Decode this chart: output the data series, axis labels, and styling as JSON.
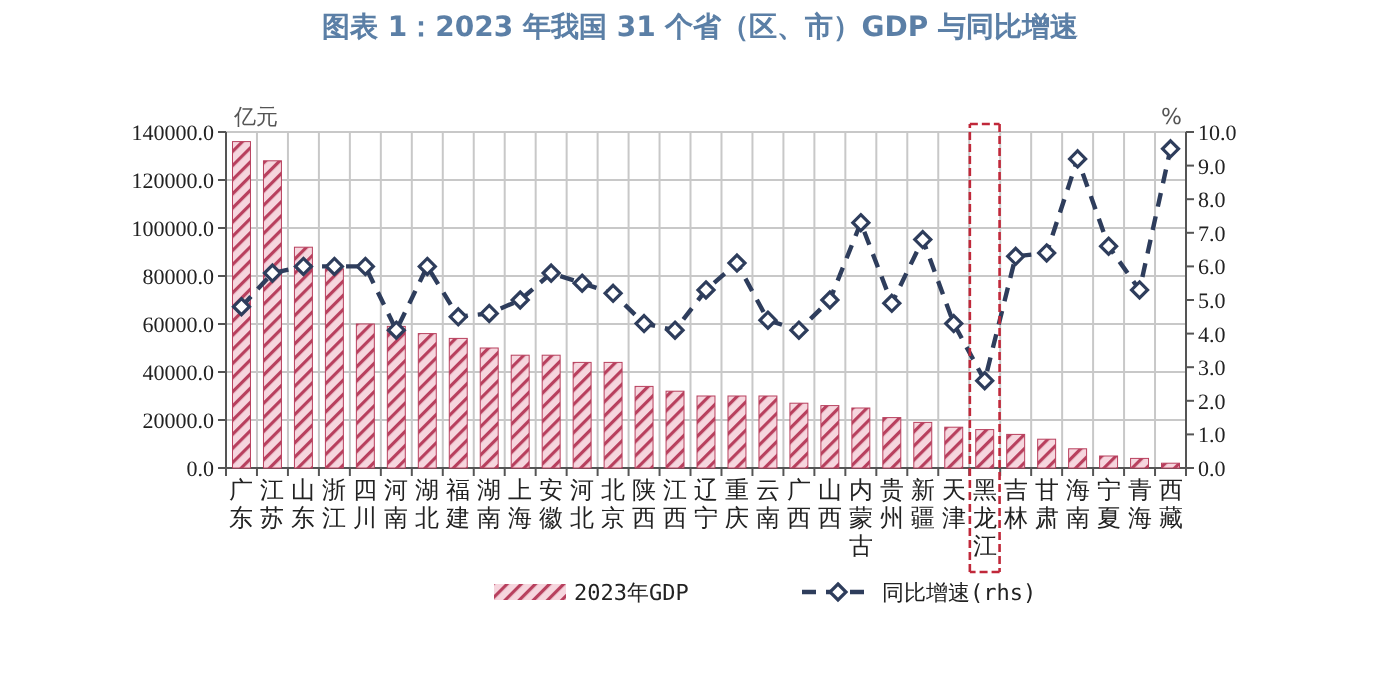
{
  "chart_data": {
    "type": "bar",
    "title": "图表 1：2023 年我国 31 个省（区、市）GDP 与同比增速",
    "ylabel": "亿元",
    "y2label": "%",
    "categories": [
      "广东",
      "江苏",
      "山东",
      "浙江",
      "四川",
      "河南",
      "湖北",
      "福建",
      "湖南",
      "上海",
      "安徽",
      "河北",
      "北京",
      "陕西",
      "江西",
      "辽宁",
      "重庆",
      "云南",
      "广西",
      "山西",
      "内蒙古",
      "贵州",
      "新疆",
      "天津",
      "黑龙江",
      "吉林",
      "甘肃",
      "海南",
      "宁夏",
      "青海",
      "西藏"
    ],
    "series": [
      {
        "name": "2023年GDP",
        "color": "#b8405e",
        "values": [
          136000,
          128000,
          92000,
          83000,
          60000,
          59000,
          56000,
          54000,
          50000,
          47000,
          47000,
          44000,
          44000,
          34000,
          32000,
          30000,
          30000,
          30000,
          27000,
          26000,
          25000,
          21000,
          19000,
          17000,
          16000,
          14000,
          12000,
          8000,
          5000,
          4000,
          2000
        ]
      },
      {
        "name": "同比增速(rhs)",
        "type": "line",
        "axis": "y2",
        "color": "#2e3d5c",
        "values": [
          4.8,
          5.8,
          6.0,
          6.0,
          6.0,
          4.1,
          6.0,
          4.5,
          4.6,
          5.0,
          5.8,
          5.5,
          5.2,
          4.3,
          4.1,
          5.3,
          6.1,
          4.4,
          4.1,
          5.0,
          7.3,
          4.9,
          6.8,
          4.3,
          2.6,
          6.3,
          6.4,
          9.2,
          6.6,
          5.3,
          9.5
        ]
      }
    ],
    "ylim": [
      0,
      140000
    ],
    "yticks": [
      {
        "value": 0,
        "label": "0.0"
      },
      {
        "value": 20000,
        "label": "20000.0"
      },
      {
        "value": 40000,
        "label": "40000.0"
      },
      {
        "value": 60000,
        "label": "60000.0"
      },
      {
        "value": 80000,
        "label": "80000.0"
      },
      {
        "value": 100000,
        "label": "100000.0"
      },
      {
        "value": 120000,
        "label": "120000.0"
      },
      {
        "value": 140000,
        "label": "140000.0"
      }
    ],
    "y2lim": [
      0,
      10
    ],
    "y2ticks": [
      {
        "value": 0,
        "label": "0.0"
      },
      {
        "value": 1,
        "label": "1.0"
      },
      {
        "value": 2,
        "label": "2.0"
      },
      {
        "value": 3,
        "label": "3.0"
      },
      {
        "value": 4,
        "label": "4.0"
      },
      {
        "value": 5,
        "label": "5.0"
      },
      {
        "value": 6,
        "label": "6.0"
      },
      {
        "value": 7,
        "label": "7.0"
      },
      {
        "value": 8,
        "label": "8.0"
      },
      {
        "value": 9,
        "label": "9.0"
      },
      {
        "value": 10,
        "label": "10.0"
      }
    ],
    "grid": true,
    "legend": "bottom",
    "marker": "diamond",
    "line_style": "dashed"
  }
}
